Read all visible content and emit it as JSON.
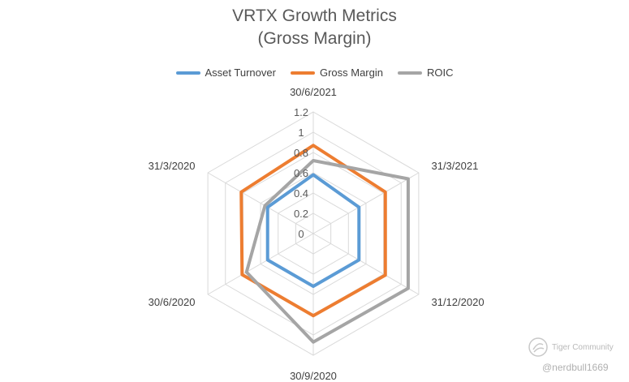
{
  "chart_data": {
    "type": "radar",
    "title_lines": [
      "VRTX Growth Metrics",
      "(Gross Margin)"
    ],
    "categories": [
      "30/6/2021",
      "31/3/2021",
      "31/12/2020",
      "30/9/2020",
      "30/6/2020",
      "31/3/2020"
    ],
    "tick_labels": [
      "0",
      "0.2",
      "0.4",
      "0.6",
      "0.8",
      "1",
      "1.2"
    ],
    "rlim": [
      0,
      1.2
    ],
    "rings": [
      0,
      0.2,
      0.4,
      0.6,
      0.8,
      1.0,
      1.2
    ],
    "grid": true,
    "legend_position": "top",
    "series": [
      {
        "name": "Asset Turnover",
        "color": "#5b9bd5",
        "values": [
          0.58,
          0.52,
          0.52,
          0.52,
          0.52,
          0.52
        ]
      },
      {
        "name": "Gross Margin",
        "color": "#ed7d31",
        "values": [
          0.87,
          0.82,
          0.82,
          0.81,
          0.81,
          0.82
        ]
      },
      {
        "name": "ROIC",
        "color": "#a5a5a5",
        "values": [
          0.72,
          1.08,
          1.08,
          1.07,
          0.76,
          0.55
        ]
      }
    ]
  },
  "watermark": {
    "brand": "Tiger Community",
    "handle": "@nerdbull1669"
  }
}
